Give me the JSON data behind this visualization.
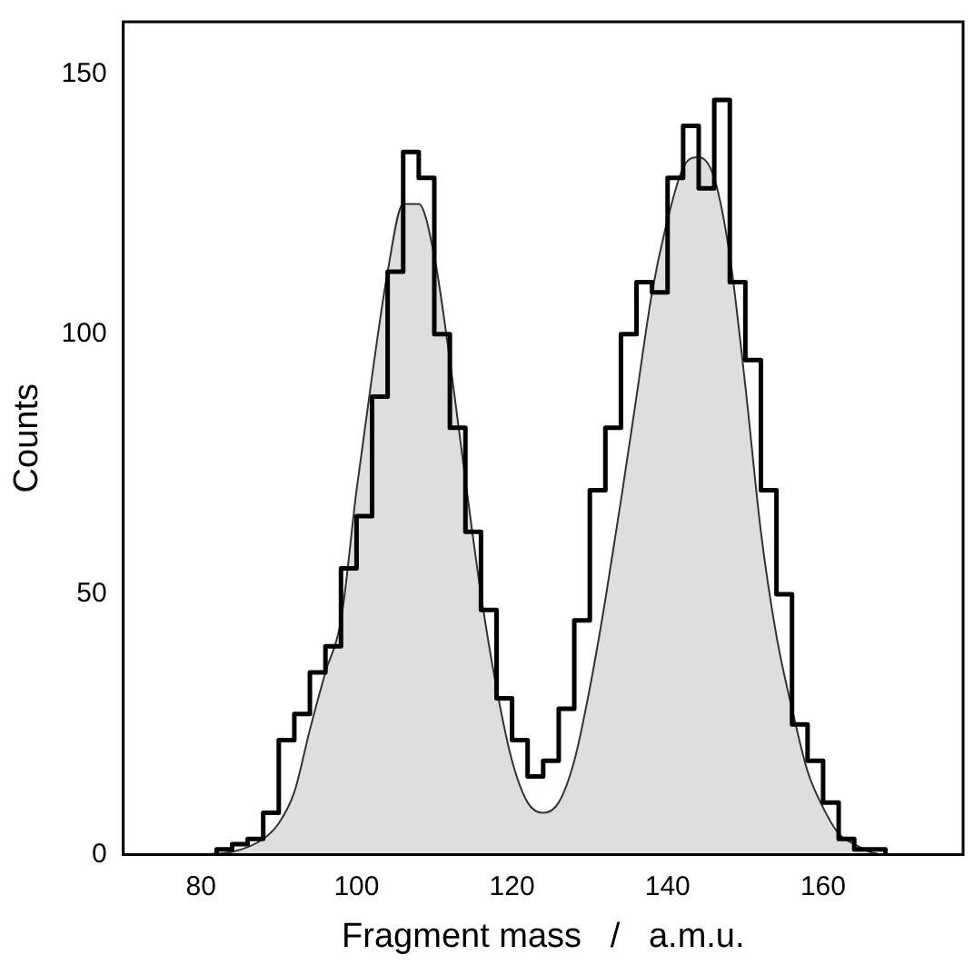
{
  "chart_data": {
    "type": "histogram",
    "xlabel": "Fragment mass   /   a.m.u.",
    "ylabel": "Counts",
    "xlim": [
      70,
      178
    ],
    "xticks": [
      80,
      100,
      120,
      140,
      160
    ],
    "ylim": [
      0,
      160
    ],
    "yticks": [
      0,
      50,
      100,
      150
    ],
    "grid": false,
    "legend": false,
    "series": [
      {
        "type": "area",
        "color": "#333333",
        "x": [
          80,
          84,
          88,
          90,
          92,
          94,
          96,
          98,
          100,
          102,
          104,
          106,
          108,
          110,
          112,
          114,
          116,
          118,
          120,
          122,
          124,
          126,
          128,
          130,
          132,
          134,
          136,
          138,
          140,
          142,
          144,
          146,
          148,
          150,
          152,
          154,
          156,
          158,
          160,
          162,
          164,
          166,
          168,
          170
        ],
        "values": [
          0,
          0.5,
          3,
          6,
          12,
          24,
          35,
          45,
          70,
          92,
          112,
          125,
          125,
          115,
          95,
          72,
          50,
          32,
          18,
          10,
          8,
          10,
          18,
          32,
          49,
          68,
          88,
          108,
          122,
          132,
          134,
          130,
          115,
          90,
          62,
          42,
          28,
          16,
          9,
          4,
          2,
          0.5,
          0,
          0
        ]
      },
      {
        "type": "histogram",
        "color": "#000000",
        "bins": [
          82,
          84,
          86,
          88,
          90,
          92,
          94,
          96,
          98,
          100,
          102,
          104,
          106,
          108,
          110,
          112,
          114,
          116,
          118,
          120,
          122,
          124,
          126,
          128,
          130,
          132,
          134,
          136,
          138,
          140,
          142,
          144,
          146,
          148,
          150,
          152,
          154,
          156,
          158,
          160,
          162,
          164,
          166,
          168
        ],
        "values": [
          1,
          2,
          3,
          8,
          22,
          27,
          35,
          40,
          55,
          65,
          88,
          112,
          135,
          130,
          100,
          82,
          62,
          47,
          30,
          22,
          15,
          18,
          28,
          45,
          70,
          82,
          100,
          110,
          108,
          130,
          140,
          128,
          145,
          110,
          95,
          70,
          50,
          25,
          18,
          10,
          3,
          1,
          1
        ]
      }
    ]
  }
}
